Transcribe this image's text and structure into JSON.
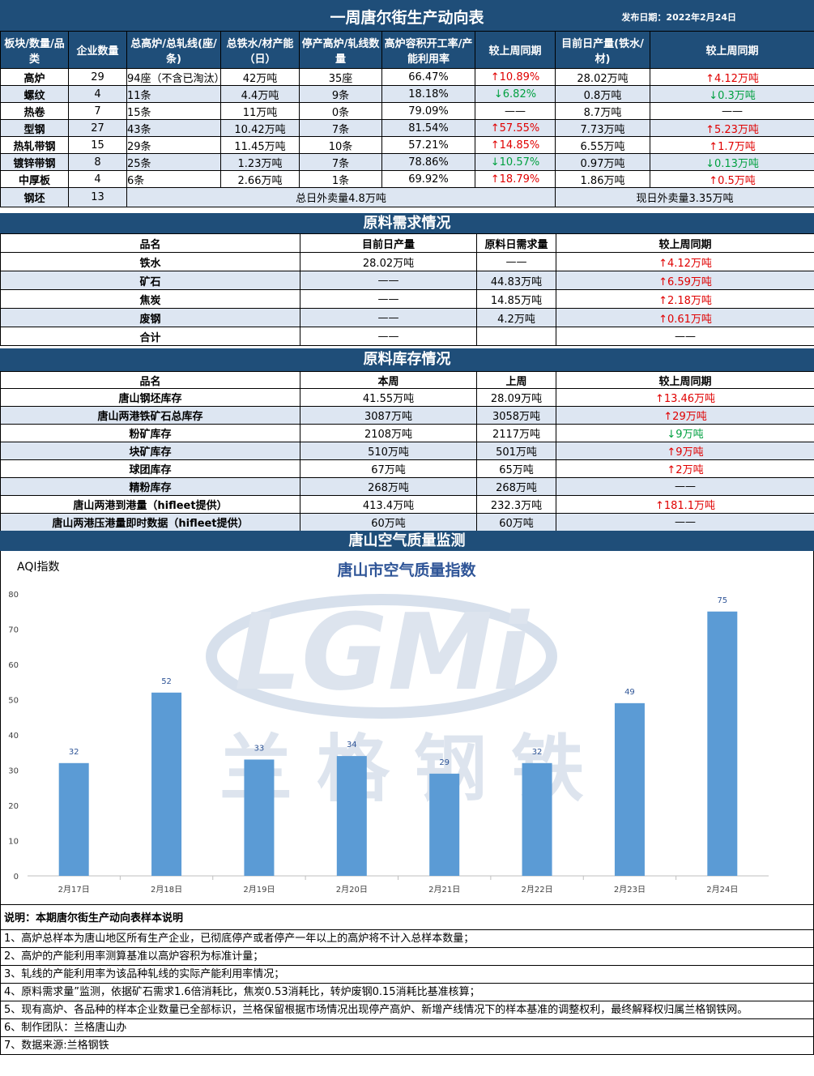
{
  "header": {
    "title": "一周唐尔街生产动向表",
    "date_label": "发布日期：2022年2月24日"
  },
  "production": {
    "columns": [
      "板块/数量/品类",
      "企业数量",
      "总高炉/总轧线(座/条)",
      "总铁水/材产能（日）",
      "停产高炉/轧线数量",
      "高炉容积开工率/产能利用率",
      "较上周同期",
      "目前日产量(铁水/材)",
      "较上周同期"
    ],
    "rows": [
      {
        "name": "高炉",
        "count": "29",
        "total": "94座（不含已淘汰）",
        "capacity": "42万吨",
        "stopped": "35座",
        "rate": "66.47%",
        "chg1": "↑10.89%",
        "chg1_dir": "up",
        "output": "28.02万吨",
        "chg2": "↑4.12万吨",
        "chg2_dir": "up"
      },
      {
        "name": "螺纹",
        "count": "4",
        "total": "11条",
        "capacity": "4.4万吨",
        "stopped": "9条",
        "rate": "18.18%",
        "chg1": "↓6.82%",
        "chg1_dir": "down",
        "output": "0.8万吨",
        "chg2": "↓0.3万吨",
        "chg2_dir": "down"
      },
      {
        "name": "热卷",
        "count": "7",
        "total": "15条",
        "capacity": "11万吨",
        "stopped": "0条",
        "rate": "79.09%",
        "chg1": "——",
        "chg1_dir": "none",
        "output": "8.7万吨",
        "chg2": "——",
        "chg2_dir": "none"
      },
      {
        "name": "型钢",
        "count": "27",
        "total": "43条",
        "capacity": "10.42万吨",
        "stopped": "7条",
        "rate": "81.54%",
        "chg1": "↑57.55%",
        "chg1_dir": "up",
        "output": "7.73万吨",
        "chg2": "↑5.23万吨",
        "chg2_dir": "up"
      },
      {
        "name": "热轧带钢",
        "count": "15",
        "total": "29条",
        "capacity": "11.45万吨",
        "stopped": "10条",
        "rate": "57.21%",
        "chg1": "↑14.85%",
        "chg1_dir": "up",
        "output": "6.55万吨",
        "chg2": "↑1.7万吨",
        "chg2_dir": "up"
      },
      {
        "name": "镀锌带钢",
        "count": "8",
        "total": "25条",
        "capacity": "1.23万吨",
        "stopped": "7条",
        "rate": "78.86%",
        "chg1": "↓10.57%",
        "chg1_dir": "down",
        "output": "0.97万吨",
        "chg2": "↓0.13万吨",
        "chg2_dir": "down"
      },
      {
        "name": "中厚板",
        "count": "4",
        "total": "6条",
        "capacity": "2.66万吨",
        "stopped": "1条",
        "rate": "69.92%",
        "chg1": "↑18.79%",
        "chg1_dir": "up",
        "output": "1.86万吨",
        "chg2": "↑0.5万吨",
        "chg2_dir": "up"
      }
    ],
    "billet": {
      "name": "钢坯",
      "count": "13",
      "left": "总日外卖量4.8万吨",
      "right": "现日外卖量3.35万吨"
    }
  },
  "demand": {
    "title": "原料需求情况",
    "columns": [
      "品名",
      "目前日产量",
      "原料日需求量",
      "较上周同期"
    ],
    "rows": [
      {
        "name": "铁水",
        "output": "28.02万吨",
        "need": "——",
        "chg": "↑4.12万吨",
        "dir": "up"
      },
      {
        "name": "矿石",
        "output": "——",
        "need": "44.83万吨",
        "chg": "↑6.59万吨",
        "dir": "up"
      },
      {
        "name": "焦炭",
        "output": "——",
        "need": "14.85万吨",
        "chg": "↑2.18万吨",
        "dir": "up"
      },
      {
        "name": "废钢",
        "output": "——",
        "need": "4.2万吨",
        "chg": "↑0.61万吨",
        "dir": "up"
      },
      {
        "name": "合计",
        "output": "——",
        "need": "",
        "chg": "——",
        "dir": "none"
      }
    ]
  },
  "inventory": {
    "title": "原料库存情况",
    "columns": [
      "品名",
      "本周",
      "上周",
      "较上周同期"
    ],
    "rows": [
      {
        "name": "唐山钢坯库存",
        "cur": "41.55万吨",
        "prev": "28.09万吨",
        "chg": "↑13.46万吨",
        "dir": "up"
      },
      {
        "name": "唐山两港铁矿石总库存",
        "cur": "3087万吨",
        "prev": "3058万吨",
        "chg": "↑29万吨",
        "dir": "up"
      },
      {
        "name": "粉矿库存",
        "cur": "2108万吨",
        "prev": "2117万吨",
        "chg": "↓9万吨",
        "dir": "down"
      },
      {
        "name": "块矿库存",
        "cur": "510万吨",
        "prev": "501万吨",
        "chg": "↑9万吨",
        "dir": "up"
      },
      {
        "name": "球团库存",
        "cur": "67万吨",
        "prev": "65万吨",
        "chg": "↑2万吨",
        "dir": "up"
      },
      {
        "name": "精粉库存",
        "cur": "268万吨",
        "prev": "268万吨",
        "chg": "——",
        "dir": "none"
      },
      {
        "name": "唐山两港到港量（hifleet提供）",
        "cur": "413.4万吨",
        "prev": "232.3万吨",
        "chg": "↑181.1万吨",
        "dir": "up"
      },
      {
        "name": "唐山两港压港量即时数据（hifleet提供）",
        "cur": "60万吨",
        "prev": "60万吨",
        "chg": "——",
        "dir": "none"
      }
    ]
  },
  "air": {
    "section_title": "唐山空气质量监测",
    "watermark_text": "LGMi",
    "watermark_cn": "兰格钢铁"
  },
  "chart_data": {
    "type": "bar",
    "title": "唐山市空气质量指数",
    "ylabel": "AQI指数",
    "categories": [
      "2月17日",
      "2月18日",
      "2月19日",
      "2月20日",
      "2月21日",
      "2月22日",
      "2月23日",
      "2月24日"
    ],
    "values": [
      32,
      52,
      33,
      34,
      29,
      32,
      49,
      75
    ],
    "ylim": [
      0,
      80
    ],
    "yticks": [
      0,
      10,
      20,
      30,
      40,
      50,
      60,
      70,
      80
    ],
    "bar_color": "#5b9bd5",
    "label_color": "#2f5597"
  },
  "notes": {
    "title": "说明：本期唐尔街生产动向表样本说明",
    "lines": [
      "1、高炉总样本为唐山地区所有生产企业，已彻底停产或者停产一年以上的高炉将不计入总样本数量；",
      "2、高炉的产能利用率测算基准以高炉容积为标准计量；",
      "3、轧线的产能利用率为该品种轧线的实际产能利用率情况；",
      "4、原料需求量”监测，依据矿石需求1.6倍消耗比，焦炭0.53消耗比，转炉废钢0.15消耗比基准核算；",
      "5、现有高炉、各品种的样本企业数量已全部标识，兰格保留根据市场情况出现停产高炉、新增产线情况下的样本基准的调整权利，最终解释权归属兰格钢铁网。",
      "6、制作团队：兰格唐山办",
      "7、数据来源:兰格钢铁"
    ]
  }
}
